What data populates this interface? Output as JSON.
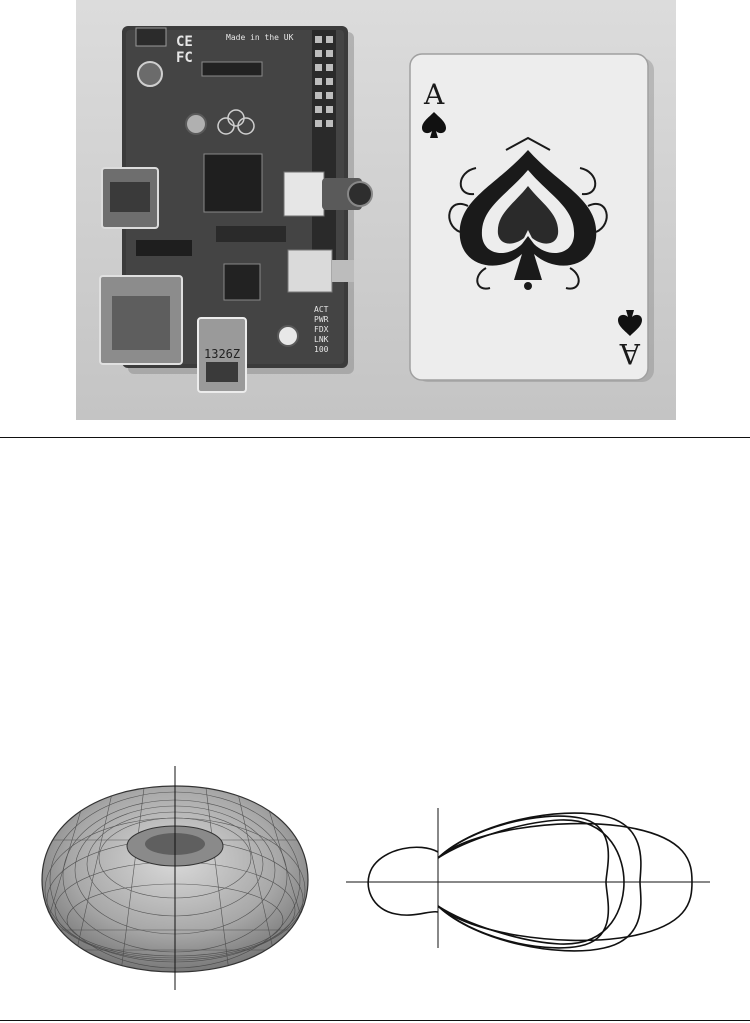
{
  "figure_top": {
    "board": {
      "made_in_label": "Made in the UK",
      "chip_label": "1326Z",
      "led_labels": [
        "ACT",
        "PWR",
        "FDX",
        "LNK",
        "100"
      ]
    },
    "card": {
      "rank": "A",
      "suit": "spade-icon"
    }
  },
  "figure_bottom": {
    "left_panel": "torus-radiation-pattern",
    "right_panel": "polar-lobe-curves",
    "lobe_count": 4
  }
}
